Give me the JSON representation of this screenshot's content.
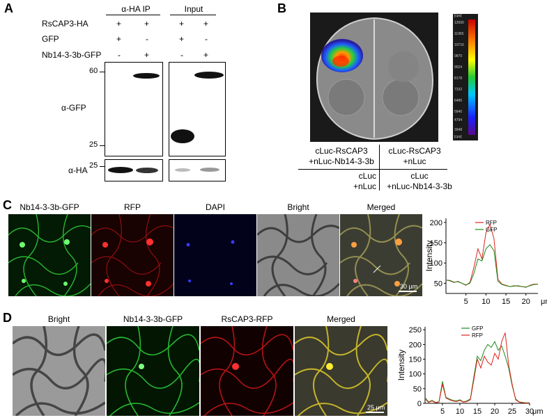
{
  "panelA": {
    "label": "A",
    "group_ip": "α-HA IP",
    "group_input": "Input",
    "rows": [
      {
        "name": "RsCAP3-HA",
        "marks": [
          "+",
          "+",
          "+",
          "+"
        ]
      },
      {
        "name": "GFP",
        "marks": [
          "+",
          "-",
          "+",
          "-"
        ]
      },
      {
        "name": "Nb14-3-3b-GFP",
        "marks": [
          "-",
          "+",
          "-",
          "+"
        ]
      }
    ],
    "ab_gfp": "α-GFP",
    "ab_ha": "α-HA",
    "mw_60": "60",
    "mw_25a": "25",
    "mw_25b": "25"
  },
  "panelB": {
    "label": "B",
    "q_tl": "cLuc-RsCAP3 +nLuc-Nb14-3-3b",
    "q_tr": "cLuc-RsCAP3 +nLuc",
    "q_bl": "cLuc +nLuc",
    "q_br": "cLuc +nLuc-Nb14-3-3b",
    "tl1": "cLuc-RsCAP3",
    "tl2": "+nLuc-Nb14-3-3b",
    "tr1": "cLuc-RsCAP3",
    "tr2": "+nLuc",
    "bl1": "cLuc",
    "bl2": "+nLuc",
    "br1": "cLuc",
    "br2": "+nLuc-Nb14-3-3b",
    "scale_unit": "[cps]",
    "scale_ticks": [
      "12000",
      "11965",
      "10716",
      "9870",
      "9024",
      "8178",
      "7332",
      "6486",
      "5640",
      "4794",
      "3948"
    ]
  },
  "panelC": {
    "label": "C",
    "images": [
      "Nb14-3-3b-GFP",
      "RFP",
      "DAPI",
      "Bright",
      "Merged"
    ],
    "scalebar": "30 μm",
    "chart_data": {
      "type": "line",
      "ylabel": "Intensity",
      "xunit": "μm",
      "x_ticks": [
        5,
        10,
        15,
        20
      ],
      "y_ticks": [
        50,
        100,
        150,
        200
      ],
      "xlim": [
        0,
        23
      ],
      "ylim": [
        25,
        210
      ],
      "series": [
        {
          "name": "RFP",
          "color": "#e0201a",
          "x": [
            0,
            1,
            2,
            3,
            4,
            5,
            6,
            7,
            8,
            9,
            10,
            11,
            12,
            13,
            14,
            15,
            16,
            17,
            18,
            19,
            20,
            21,
            22,
            23
          ],
          "values": [
            58,
            56,
            52,
            55,
            50,
            45,
            52,
            90,
            135,
            110,
            175,
            195,
            160,
            60,
            48,
            45,
            42,
            44,
            43,
            42,
            40,
            45,
            48,
            48
          ]
        },
        {
          "name": "GFP",
          "color": "#1a8a1a",
          "x": [
            0,
            1,
            2,
            3,
            4,
            5,
            6,
            7,
            8,
            9,
            10,
            11,
            12,
            13,
            14,
            15,
            16,
            17,
            18,
            19,
            20,
            21,
            22,
            23
          ],
          "values": [
            58,
            57,
            53,
            54,
            50,
            46,
            50,
            75,
            110,
            105,
            135,
            145,
            130,
            55,
            47,
            44,
            42,
            43,
            44,
            42,
            41,
            44,
            47,
            48
          ]
        }
      ]
    }
  },
  "panelD": {
    "label": "D",
    "images": [
      "Bright",
      "Nb14-3-3b-GFP",
      "RsCAP3-RFP",
      "Merged"
    ],
    "scalebar": "25 μm",
    "chart_data": {
      "type": "line",
      "ylabel": "Intensity",
      "xunit": "μm",
      "x_ticks": [
        5,
        10,
        15,
        20,
        25,
        30
      ],
      "y_ticks": [
        0,
        50,
        100,
        150,
        200,
        250
      ],
      "xlim": [
        0,
        30
      ],
      "ylim": [
        0,
        260
      ],
      "series": [
        {
          "name": "GFP",
          "color": "#1a8a1a",
          "x": [
            0,
            1,
            2,
            3,
            4,
            5,
            6,
            7,
            8,
            9,
            10,
            11,
            12,
            13,
            14,
            15,
            16,
            17,
            18,
            19,
            20,
            21,
            22,
            23,
            24,
            25,
            26,
            27,
            28,
            29,
            30
          ],
          "values": [
            20,
            5,
            10,
            3,
            5,
            75,
            20,
            15,
            10,
            8,
            12,
            5,
            8,
            15,
            90,
            160,
            145,
            180,
            200,
            190,
            210,
            180,
            195,
            160,
            120,
            60,
            15,
            5,
            3,
            2,
            2
          ]
        },
        {
          "name": "RFP",
          "color": "#e0201a",
          "x": [
            0,
            1,
            2,
            3,
            4,
            5,
            6,
            7,
            8,
            9,
            10,
            11,
            12,
            13,
            14,
            15,
            16,
            17,
            18,
            19,
            20,
            21,
            22,
            23,
            24,
            25,
            26,
            27,
            28,
            29,
            30
          ],
          "values": [
            15,
            3,
            8,
            2,
            4,
            65,
            18,
            12,
            8,
            6,
            10,
            4,
            6,
            12,
            80,
            150,
            120,
            160,
            140,
            130,
            170,
            150,
            210,
            240,
            130,
            65,
            12,
            4,
            2,
            1,
            1
          ]
        }
      ]
    }
  }
}
